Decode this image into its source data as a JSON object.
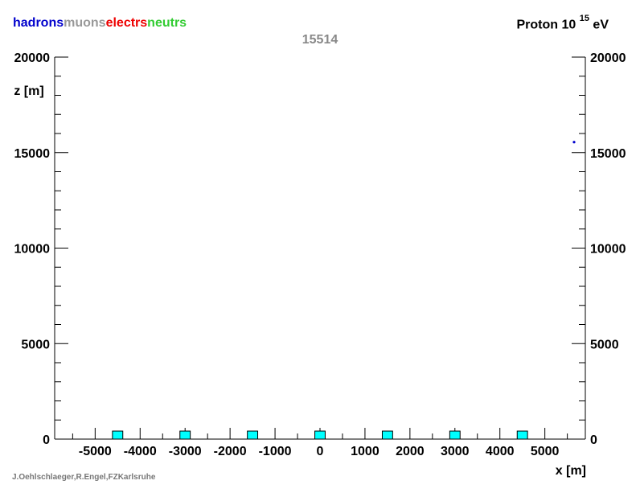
{
  "legend": {
    "items": [
      {
        "label": "hadrons",
        "color": "#0000cc"
      },
      {
        "label": "muons",
        "color": "#999999"
      },
      {
        "label": "electrs",
        "color": "#ee0000"
      },
      {
        "label": "neutrs",
        "color": "#33cc33"
      }
    ]
  },
  "header": {
    "primary": "Proton 10",
    "exponent": "15",
    "unit": "eV"
  },
  "event_id": "15514",
  "credit": "J.Oehlschlaeger,R.Engel,FZKarlsruhe",
  "colors": {
    "detector_fill": "#00ffff",
    "detector_stroke": "#000000",
    "hadron_point": "#0000cc",
    "axis": "#000000"
  },
  "chart_data": {
    "type": "scatter",
    "title": "",
    "xlabel": "x [m]",
    "ylabel": "z [m]",
    "xlim": [
      -5900,
      5900
    ],
    "ylim": [
      0,
      20000
    ],
    "x_ticks": [
      -5000,
      -4000,
      -3000,
      -2000,
      -1000,
      0,
      1000,
      2000,
      3000,
      4000,
      5000
    ],
    "x_tick_labels": [
      "-5000",
      "-4000",
      "-3000",
      "-2000",
      "-1000",
      "0",
      "1000",
      "2000",
      "3000",
      "4000",
      "5000"
    ],
    "y_ticks": [
      0,
      5000,
      10000,
      15000,
      20000
    ],
    "y_tick_labels": [
      "0",
      "5000",
      "10000",
      "15000",
      "20000"
    ],
    "detectors": {
      "name": "detector stations",
      "x": [
        -4500,
        -3000,
        -1500,
        0,
        1500,
        3000,
        4500
      ],
      "z": [
        0,
        0,
        0,
        0,
        0,
        0,
        0
      ],
      "width": 230,
      "height": 420
    },
    "series": [
      {
        "x": [
          5650
        ],
        "z": [
          15550
        ],
        "color": "#0000cc"
      }
    ],
    "grid": false
  }
}
